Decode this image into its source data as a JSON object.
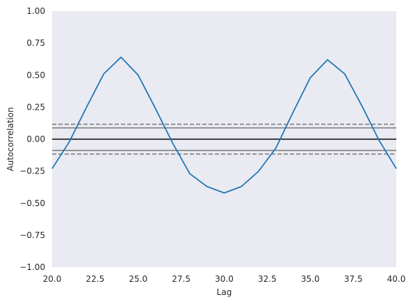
{
  "chart_data": {
    "type": "line",
    "title": "",
    "xlabel": "Lag",
    "ylabel": "Autocorrelation",
    "xlim": [
      20.0,
      40.0
    ],
    "ylim": [
      -1.0,
      1.0
    ],
    "grid": false,
    "x_ticks": [
      "20.0",
      "22.5",
      "25.0",
      "27.5",
      "30.0",
      "32.5",
      "35.0",
      "37.5",
      "40.0"
    ],
    "y_ticks": [
      "1.00",
      "0.75",
      "0.50",
      "0.25",
      "0.00",
      "−0.25",
      "−0.50",
      "−0.75",
      "−1.00"
    ],
    "series": [
      {
        "x": [
          20,
          21,
          22,
          23,
          24,
          25,
          26,
          27,
          28,
          29,
          30,
          31,
          32,
          33,
          34,
          35,
          36,
          37,
          38,
          39,
          40
        ],
        "values": [
          -0.23,
          -0.02,
          0.25,
          0.51,
          0.64,
          0.5,
          0.24,
          -0.03,
          -0.27,
          -0.37,
          -0.42,
          -0.37,
          -0.25,
          -0.07,
          0.21,
          0.48,
          0.62,
          0.51,
          0.26,
          -0.01,
          -0.23
        ],
        "color": "#1f77b4"
      }
    ],
    "reference_lines": [
      {
        "y": 0.0,
        "color": "#000000",
        "style": "solid"
      },
      {
        "y": 0.088,
        "color": "#808080",
        "style": "solid"
      },
      {
        "y": -0.088,
        "color": "#808080",
        "style": "solid"
      },
      {
        "y": 0.116,
        "color": "#808080",
        "style": "dashed"
      },
      {
        "y": -0.116,
        "color": "#808080",
        "style": "dashed"
      }
    ],
    "background_color": "#eaeaf2"
  }
}
